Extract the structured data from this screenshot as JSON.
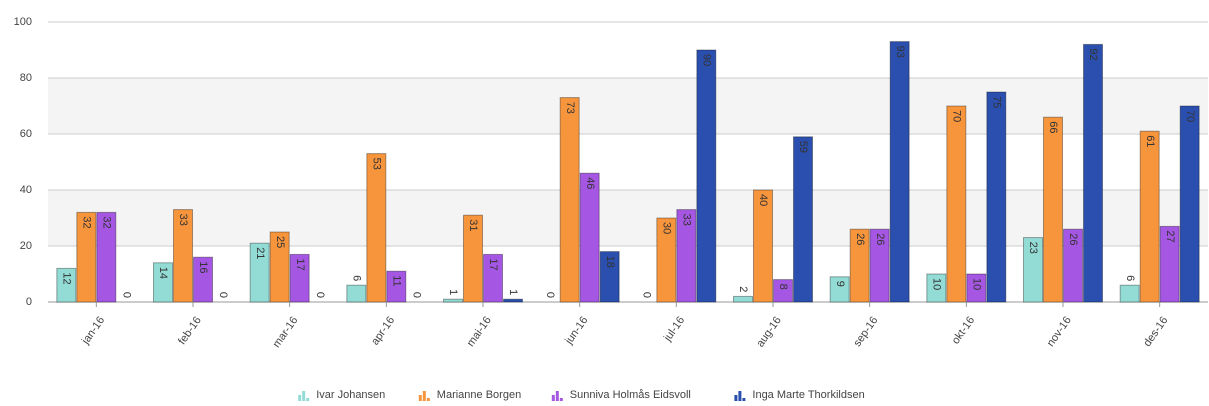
{
  "chart_data": {
    "type": "bar",
    "categories": [
      "jan-16",
      "feb-16",
      "mar-16",
      "apr-16",
      "mai-16",
      "jun-16",
      "jul-16",
      "aug-16",
      "sep-16",
      "okt-16",
      "nov-16",
      "des-16"
    ],
    "series": [
      {
        "name": "Ivar Johansen",
        "color": "#93dcd6",
        "values": [
          12,
          14,
          21,
          6,
          1,
          0,
          0,
          2,
          9,
          10,
          23,
          6
        ]
      },
      {
        "name": "Marianne Borgen",
        "color": "#f7953c",
        "values": [
          32,
          33,
          25,
          53,
          31,
          73,
          30,
          40,
          26,
          70,
          66,
          61
        ]
      },
      {
        "name": "Sunniva Holmås Eidsvoll",
        "color": "#a557e3",
        "values": [
          32,
          16,
          17,
          11,
          17,
          46,
          33,
          8,
          26,
          10,
          26,
          27
        ]
      },
      {
        "name": "Inga Marte Thorkildsen",
        "color": "#2b4fae",
        "values": [
          0,
          0,
          0,
          0,
          1,
          18,
          90,
          59,
          93,
          75,
          92,
          70
        ]
      }
    ],
    "ylim": [
      0,
      100
    ],
    "yticks": [
      0,
      20,
      40,
      60,
      80,
      100
    ],
    "grid": true
  }
}
